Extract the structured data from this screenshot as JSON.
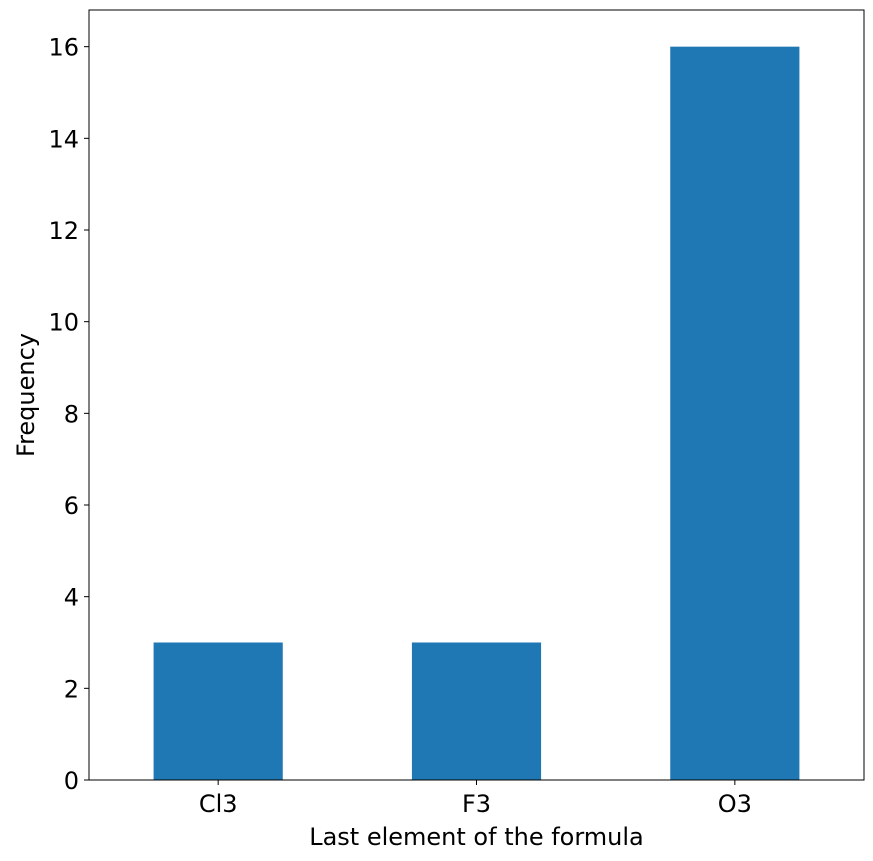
{
  "chart_data": {
    "type": "bar",
    "categories": [
      "Cl3",
      "F3",
      "O3"
    ],
    "values": [
      3,
      3,
      16
    ],
    "title": "",
    "xlabel": "Last element of the formula",
    "ylabel": "Frequency",
    "ylim": [
      0,
      16.8
    ],
    "yticks": [
      "0",
      "2",
      "4",
      "6",
      "8",
      "10",
      "12",
      "14",
      "16"
    ],
    "grid": false,
    "legend": "none",
    "bar_color": "#1f77b4"
  }
}
